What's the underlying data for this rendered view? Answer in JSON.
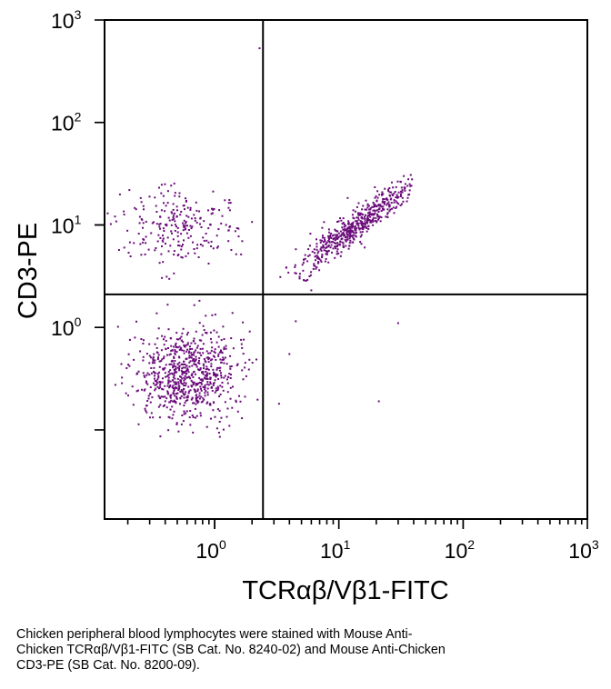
{
  "chart_data": {
    "type": "scatter",
    "scale": "log-log",
    "xlabel": "TCRαβ/Vβ1-FITC",
    "ylabel": "CD3-PE",
    "xlim": [
      0.13,
      1000
    ],
    "ylim": [
      0.0135,
      1000
    ],
    "point_color": "#6a0a7a",
    "x_tick_labels": [
      {
        "value": 1,
        "base": "10",
        "exp": "0"
      },
      {
        "value": 10,
        "base": "10",
        "exp": "1"
      },
      {
        "value": 100,
        "base": "10",
        "exp": "2"
      },
      {
        "value": 1000,
        "base": "10",
        "exp": "3"
      }
    ],
    "y_tick_labels": [
      {
        "value": 1,
        "base": "10",
        "exp": "0"
      },
      {
        "value": 10,
        "base": "10",
        "exp": "1"
      },
      {
        "value": 100,
        "base": "10",
        "exp": "2"
      },
      {
        "value": 1000,
        "base": "10",
        "exp": "3"
      }
    ],
    "quadrant_gates": {
      "x": 2.45,
      "y": 2.1
    },
    "populations": [
      {
        "name": "lower-left",
        "cx": 0.62,
        "cy": 0.35,
        "sx": 0.22,
        "sy": 0.24,
        "rho": 0.1,
        "n": 760,
        "xmin": 0.13,
        "xmax": 2.4,
        "ymin": 0.025,
        "ymax": 2.1
      },
      {
        "name": "upper-left",
        "cx": 0.5,
        "cy": 9.5,
        "sx": 0.24,
        "sy": 0.2,
        "rho": 0.0,
        "n": 240,
        "xmin": 0.13,
        "xmax": 2.4,
        "ymin": 1.4,
        "ymax": 27
      },
      {
        "name": "upper-right",
        "cx": 14,
        "cy": 10,
        "sx": 0.23,
        "sy": 0.22,
        "rho": 0.93,
        "n": 560,
        "xmin": 3.0,
        "xmax": 40,
        "ymin": 1.5,
        "ymax": 32
      }
    ],
    "outliers": [
      [
        2.3,
        530
      ],
      [
        30,
        1.1
      ],
      [
        21,
        0.19
      ],
      [
        4.0,
        0.55
      ],
      [
        4.5,
        1.15
      ],
      [
        3.3,
        0.18
      ],
      [
        6.0,
        2.3
      ]
    ]
  },
  "caption": {
    "line1": "Chicken peripheral blood lymphocytes were stained with Mouse Anti-",
    "line2": "Chicken TCRαβ/Vβ1-FITC (SB Cat. No. 8240-02) and Mouse Anti-Chicken",
    "line3": "CD3-PE (SB Cat. No. 8200-09)."
  }
}
